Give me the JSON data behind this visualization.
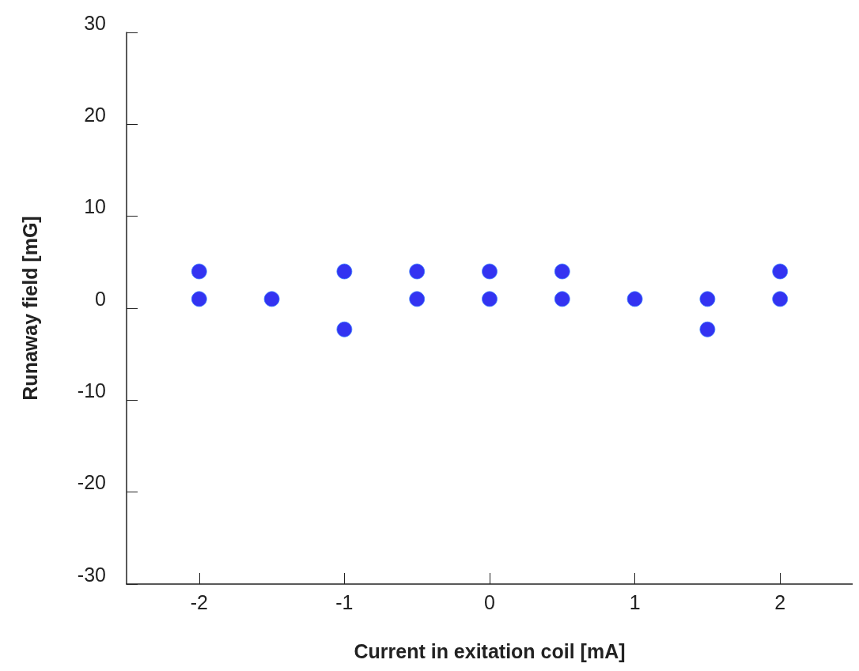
{
  "chart_data": {
    "type": "scatter",
    "xlabel": "Current in exitation coil [mA]",
    "ylabel": "Runaway field [mG]",
    "series": [
      {
        "color": "#0000ee",
        "x": [
          -2,
          -2,
          -1.5,
          -1,
          -1,
          -0.5,
          -0.5,
          0,
          0,
          0.5,
          0.5,
          1,
          1.5,
          1.5,
          2,
          2
        ],
        "values": [
          4,
          1,
          1,
          4,
          -2.3,
          4,
          1,
          4,
          1,
          4,
          1,
          1,
          1,
          -2.3,
          4,
          1
        ]
      }
    ],
    "xlim": [
      -2.5,
      2.5
    ],
    "xticks": [
      -2,
      -1,
      0,
      1,
      2
    ],
    "ylim": [
      -30,
      30
    ],
    "yticks": [
      -30,
      -20,
      -10,
      0,
      10,
      20,
      30
    ],
    "grid": false,
    "marker": "circle"
  }
}
